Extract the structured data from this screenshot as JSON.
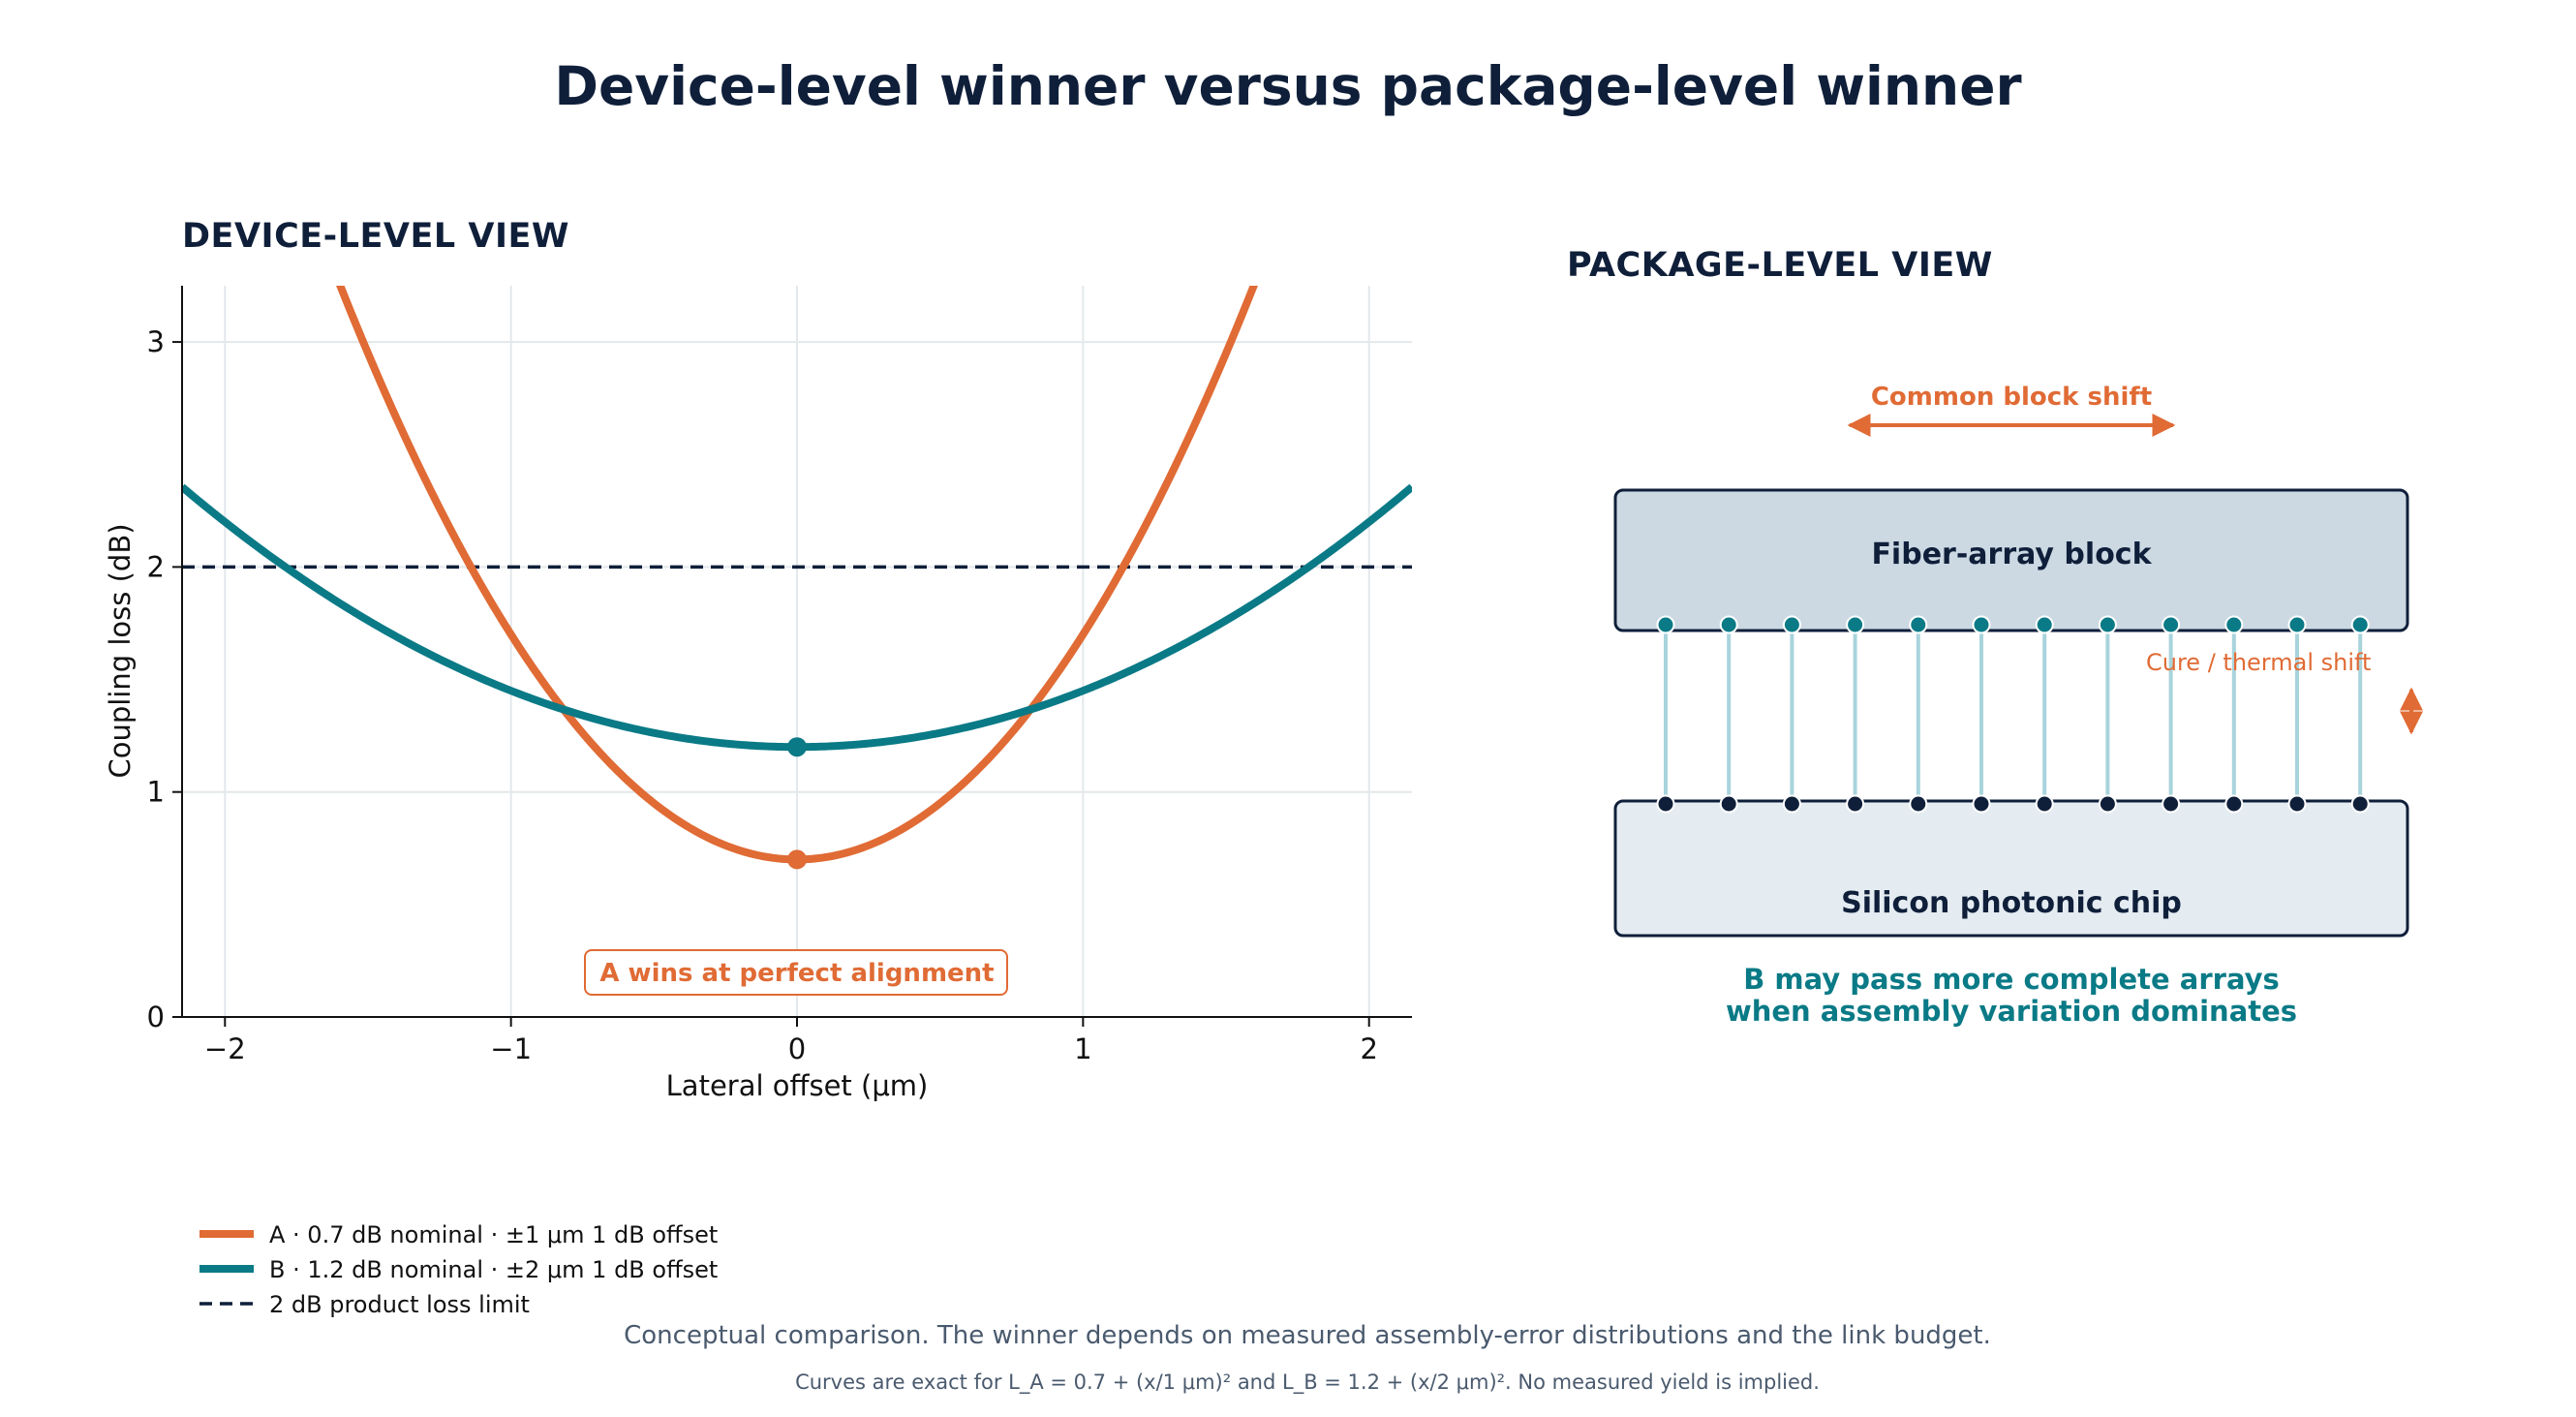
{
  "title": "Device-level winner versus package-level winner",
  "colors": {
    "series_a": "#e06b35",
    "series_b": "#0a7a86",
    "limit": "#0f1f3a",
    "navy": "#0f1f3a",
    "grid": "#e3e8ec"
  },
  "chart_data": {
    "type": "line",
    "title": "DEVICE-LEVEL VIEW",
    "xlabel": "Lateral offset (μm)",
    "ylabel": "Coupling loss (dB)",
    "xlim": [
      -2.15,
      2.15
    ],
    "ylim": [
      0,
      3.25
    ],
    "xticks": [
      -2,
      -1,
      0,
      1,
      2
    ],
    "xtick_labels": [
      "−2",
      "−1",
      "0",
      "1",
      "2"
    ],
    "yticks": [
      0,
      1,
      2,
      3
    ],
    "ytick_labels": [
      "0",
      "1",
      "2",
      "3"
    ],
    "grid": true,
    "legend_position": "bottom-left",
    "series": [
      {
        "name": "A · 0.7 dB nominal · ±1 μm 1 dB offset",
        "key": "a",
        "nominal": 0.7,
        "offset_1db": 1,
        "optimum_x": 0,
        "optimum_y": 0.7
      },
      {
        "name": "B · 1.2 dB nominal · ±2 μm 1 dB offset",
        "key": "b",
        "nominal": 1.2,
        "offset_1db": 2,
        "optimum_x": 0,
        "optimum_y": 1.2
      }
    ],
    "limit": {
      "name": "2 dB product loss limit",
      "value": 2
    },
    "annotation": {
      "text": "A wins at perfect alignment",
      "x": 0,
      "y": 0.22
    }
  },
  "package_view": {
    "title": "PACKAGE-LEVEL VIEW",
    "shift_label": "Common block shift",
    "fiber_block_label": "Fiber-array block",
    "chip_label": "Silicon photonic chip",
    "thermal_label": "Cure / thermal shift",
    "channel_count": 12,
    "conclusion_line1": "B may pass more complete arrays",
    "conclusion_line2": "when assembly variation dominates",
    "icons": [
      "double-arrow-horizontal-icon",
      "double-arrow-vertical-icon"
    ]
  },
  "footer": {
    "line1": "Conceptual comparison. The winner depends on measured assembly-error distributions and the link budget.",
    "line2": "Curves are exact for L_A = 0.7 + (x/1 μm)² and L_B = 1.2 + (x/2 μm)². No measured yield is implied."
  }
}
